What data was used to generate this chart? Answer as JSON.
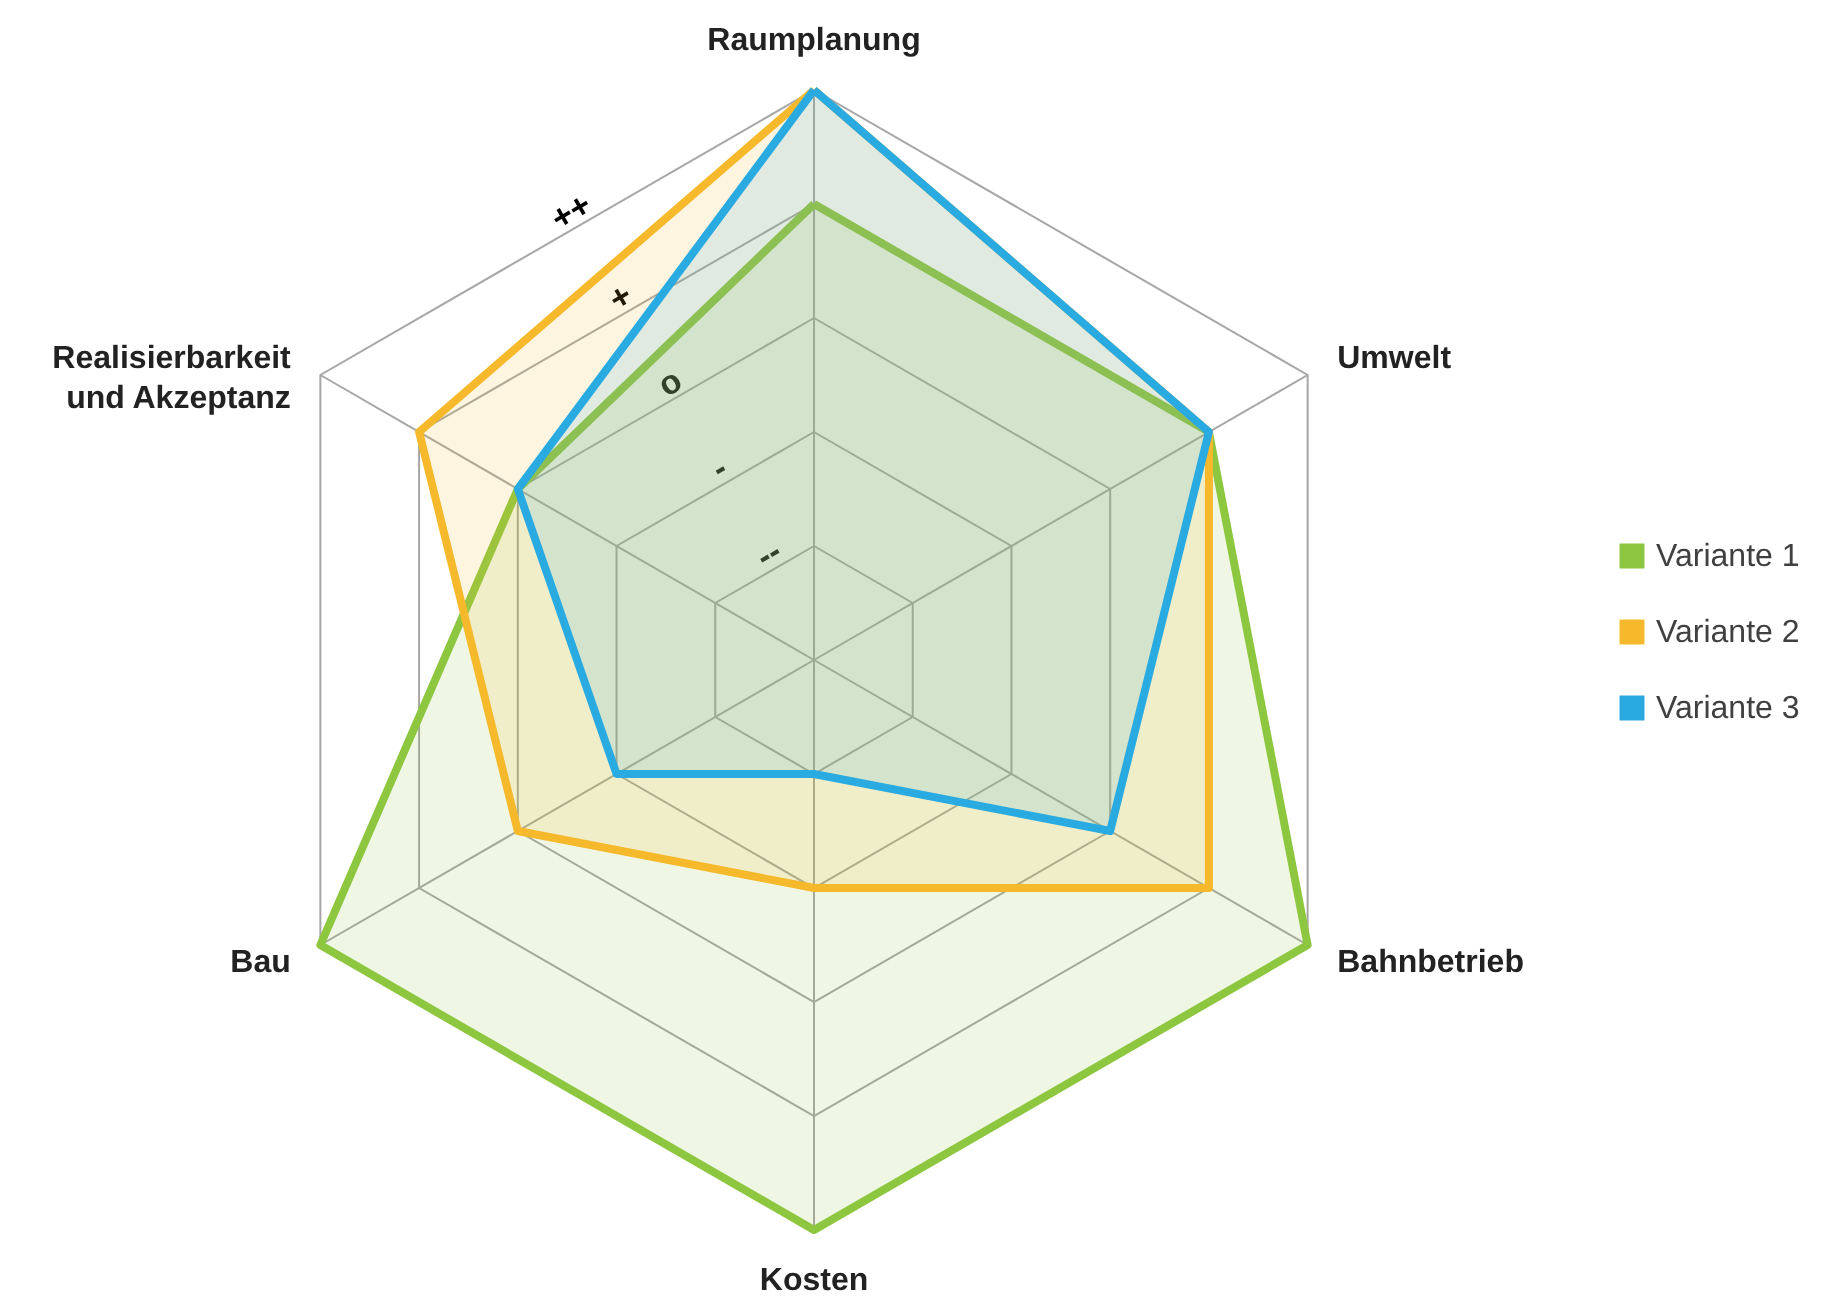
{
  "chart_data": {
    "type": "radar",
    "categories": [
      "Raumplanung",
      "Umwelt",
      "Bahnbetrieb",
      "Kosten",
      "Bau",
      "Realisierbarkeit\nund Akzeptanz"
    ],
    "ylim": [
      0,
      5
    ],
    "yticks": [
      {
        "value": 1,
        "label": "--"
      },
      {
        "value": 2,
        "label": "-"
      },
      {
        "value": 3,
        "label": "o"
      },
      {
        "value": 4,
        "label": "+"
      },
      {
        "value": 5,
        "label": "++"
      }
    ],
    "grid": true,
    "legend": "right",
    "series": [
      {
        "name": "Variante 1",
        "color": "#8dc63f",
        "values": [
          4,
          4,
          5,
          5,
          5,
          3
        ]
      },
      {
        "name": "Variante 2",
        "color": "#f6b92b",
        "values": [
          5,
          4,
          4,
          2,
          3,
          4
        ]
      },
      {
        "name": "Variante 3",
        "color": "#29abe2",
        "values": [
          5,
          4,
          3,
          1,
          2,
          3
        ]
      }
    ]
  }
}
